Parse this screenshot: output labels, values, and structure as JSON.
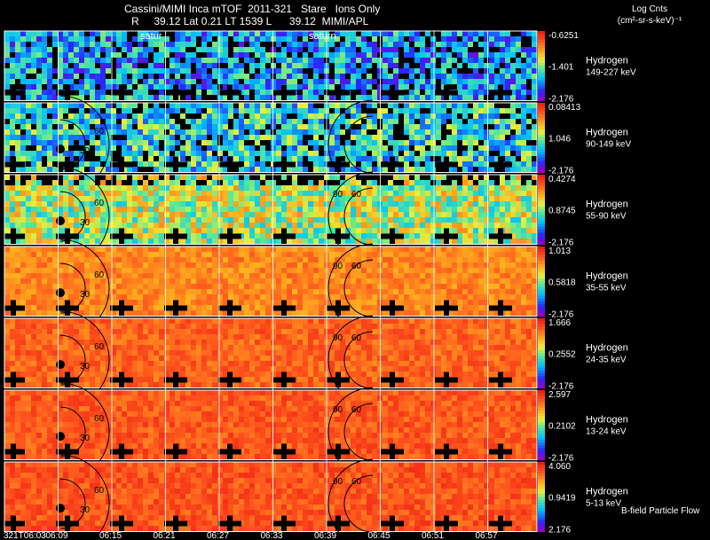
{
  "header": {
    "title": "Cassini/MIMI Inca mTOF  2011-321   Stare   Ions Only",
    "subtitle": "R     39.12 Lat 0.21 LT 1539 L      39.12  MIMI/APL",
    "units_line1": "Log Cnts",
    "units_line2": "(cm²-sr-s-keV)⁻¹"
  },
  "overlay_labels": {
    "saturn_a": "satur",
    "saturn_b": "saturn",
    "flow": "B-field Particle Flow"
  },
  "chart_data": {
    "type": "heatmap",
    "title": "Cassini/MIMI Inca mTOF  2011-321   Stare   Ions Only",
    "xlabel": "",
    "time_ticks": [
      "321T06:03",
      "06:09",
      "06:15",
      "06:21",
      "06:27",
      "06:33",
      "06:39",
      "06:45",
      "06:51",
      "06:57"
    ],
    "contour_labels": [
      "30",
      "60",
      "90"
    ],
    "panels": [
      {
        "species": "Hydrogen",
        "energy": "149-227 keV",
        "colorbar_max": "-0.6251",
        "colorbar_mid": "-1.401",
        "colorbar_min": "-2.176"
      },
      {
        "species": "Hydrogen",
        "energy": "90-149 keV",
        "colorbar_max": "0.08413",
        "colorbar_mid": "1.046",
        "colorbar_min": "-2.176"
      },
      {
        "species": "Hydrogen",
        "energy": "55-90 keV",
        "colorbar_max": "0.4274",
        "colorbar_mid": "0.8745",
        "colorbar_min": "-2.176"
      },
      {
        "species": "Hydrogen",
        "energy": "35-55 keV",
        "colorbar_max": "1.013",
        "colorbar_mid": "0.5818",
        "colorbar_min": "-2.176"
      },
      {
        "species": "Hydrogen",
        "energy": "24-35 keV",
        "colorbar_max": "1.666",
        "colorbar_mid": "0.2552",
        "colorbar_min": "-2.176"
      },
      {
        "species": "Hydrogen",
        "energy": "13-24 keV",
        "colorbar_max": "2.597",
        "colorbar_mid": "0.2102",
        "colorbar_min": "-2.176"
      },
      {
        "species": "Hydrogen",
        "energy": "5-13 keV",
        "colorbar_max": "4.060",
        "colorbar_mid": "0.9419",
        "colorbar_min": "2.176"
      }
    ],
    "panel_intensity_level": [
      0.28,
      0.38,
      0.55,
      0.78,
      0.85,
      0.87,
      0.88
    ]
  }
}
